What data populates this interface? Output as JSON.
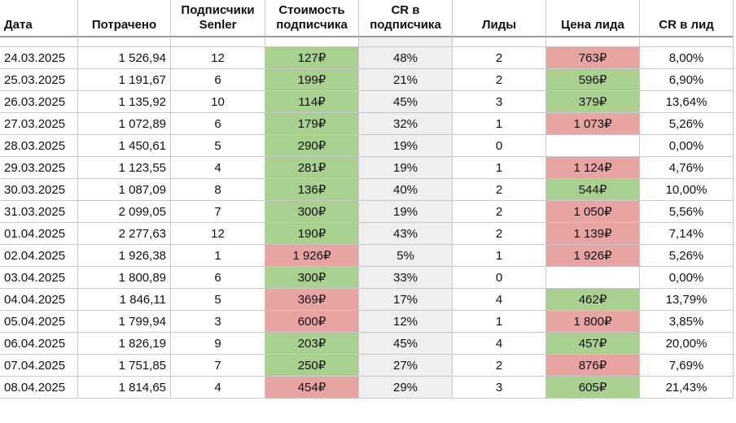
{
  "table": {
    "headers": [
      "Дата",
      "Потрачено",
      "Подписчики Senler",
      "Стоимость подписчика",
      "CR в подписчика",
      "Лиды",
      "Цена лида",
      "CR в лид"
    ],
    "colors": {
      "good": "#a9d08e",
      "bad": "#e8a3a3"
    },
    "rows": [
      {
        "cells": [
          "24.03.2025",
          "1 526,94",
          "12",
          "127₽",
          "48%",
          "2",
          "763₽",
          "8,00%"
        ],
        "marks": [
          "good",
          "bad"
        ]
      },
      {
        "cells": [
          "25.03.2025",
          "1 191,67",
          "6",
          "199₽",
          "21%",
          "2",
          "596₽",
          "6,90%"
        ],
        "marks": [
          "good",
          "good"
        ]
      },
      {
        "cells": [
          "26.03.2025",
          "1 135,92",
          "10",
          "114₽",
          "45%",
          "3",
          "379₽",
          "13,64%"
        ],
        "marks": [
          "good",
          "good"
        ]
      },
      {
        "cells": [
          "27.03.2025",
          "1 072,89",
          "6",
          "179₽",
          "32%",
          "1",
          "1 073₽",
          "5,26%"
        ],
        "marks": [
          "good",
          "bad"
        ]
      },
      {
        "cells": [
          "28.03.2025",
          "1 450,61",
          "5",
          "290₽",
          "19%",
          "0",
          null,
          "0,00%"
        ],
        "marks": [
          "good",
          null
        ]
      },
      {
        "cells": [
          "29.03.2025",
          "1 123,55",
          "4",
          "281₽",
          "19%",
          "1",
          "1 124₽",
          "4,76%"
        ],
        "marks": [
          "good",
          "bad"
        ]
      },
      {
        "cells": [
          "30.03.2025",
          "1 087,09",
          "8",
          "136₽",
          "40%",
          "2",
          "544₽",
          "10,00%"
        ],
        "marks": [
          "good",
          "good"
        ]
      },
      {
        "cells": [
          "31.03.2025",
          "2 099,05",
          "7",
          "300₽",
          "19%",
          "2",
          "1 050₽",
          "5,56%"
        ],
        "marks": [
          "good",
          "bad"
        ]
      },
      {
        "cells": [
          "01.04.2025",
          "2 277,63",
          "12",
          "190₽",
          "43%",
          "2",
          "1 139₽",
          "7,14%"
        ],
        "marks": [
          "good",
          "bad"
        ]
      },
      {
        "cells": [
          "02.04.2025",
          "1 926,38",
          "1",
          "1 926₽",
          "5%",
          "1",
          "1 926₽",
          "5,26%"
        ],
        "marks": [
          "bad",
          "bad"
        ]
      },
      {
        "cells": [
          "03.04.2025",
          "1 800,89",
          "6",
          "300₽",
          "33%",
          "0",
          null,
          "0,00%"
        ],
        "marks": [
          "good",
          null
        ]
      },
      {
        "cells": [
          "04.04.2025",
          "1 846,11",
          "5",
          "369₽",
          "17%",
          "4",
          "462₽",
          "13,79%"
        ],
        "marks": [
          "bad",
          "good"
        ]
      },
      {
        "cells": [
          "05.04.2025",
          "1 799,94",
          "3",
          "600₽",
          "12%",
          "1",
          "1 800₽",
          "3,85%"
        ],
        "marks": [
          "bad",
          "bad"
        ]
      },
      {
        "cells": [
          "06.04.2025",
          "1 826,19",
          "9",
          "203₽",
          "45%",
          "4",
          "457₽",
          "20,00%"
        ],
        "marks": [
          "good",
          "good"
        ]
      },
      {
        "cells": [
          "07.04.2025",
          "1 751,85",
          "7",
          "250₽",
          "27%",
          "2",
          "876₽",
          "7,69%"
        ],
        "marks": [
          "good",
          "bad"
        ]
      },
      {
        "cells": [
          "08.04.2025",
          "1 814,65",
          "4",
          "454₽",
          "29%",
          "3",
          "605₽",
          "21,43%"
        ],
        "marks": [
          "bad",
          "good"
        ]
      }
    ]
  }
}
